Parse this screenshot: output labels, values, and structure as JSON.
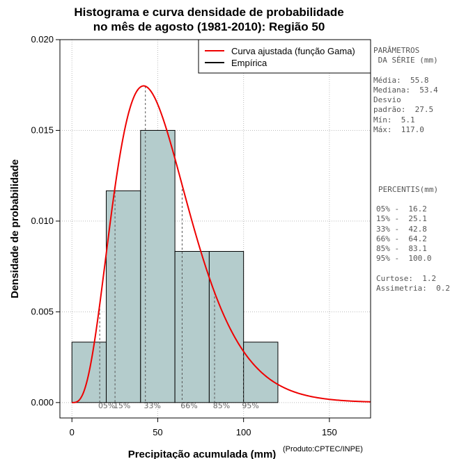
{
  "chart_data": {
    "type": "histogram",
    "title_line1": "Histograma e curva densidade de probabilidade",
    "title_line2": "no mês de agosto (1981-2010): Região 50",
    "xlabel": "Precipitação acumulada (mm)",
    "ylabel": "Densidade de probabilidade",
    "credit": "(Produto:CPTEC/INPE)",
    "xlim": [
      -7,
      174
    ],
    "ylim": [
      -0.00085,
      0.02
    ],
    "x_ticks": [
      0,
      50,
      100,
      150
    ],
    "x_tick_labels": [
      "0",
      "50",
      "100",
      "150"
    ],
    "y_ticks": [
      0,
      0.005,
      0.01,
      0.015,
      0.02
    ],
    "y_tick_labels": [
      "0.000",
      "0.005",
      "0.010",
      "0.015",
      "0.020"
    ],
    "bins": [
      {
        "start": 0,
        "end": 20,
        "density": 0.00333
      },
      {
        "start": 20,
        "end": 40,
        "density": 0.01167
      },
      {
        "start": 40,
        "end": 60,
        "density": 0.015
      },
      {
        "start": 60,
        "end": 80,
        "density": 0.00833
      },
      {
        "start": 80,
        "end": 100,
        "density": 0.00833
      },
      {
        "start": 100,
        "end": 120,
        "density": 0.00333
      }
    ],
    "gamma_fit": {
      "shape": 4.5,
      "rate": 0.0838
    },
    "percentile_lines": [
      {
        "value": 16.2,
        "label": "05%"
      },
      {
        "value": 25.1,
        "label": "15%"
      },
      {
        "value": 42.8,
        "label": "33%"
      },
      {
        "value": 64.2,
        "label": "66%"
      },
      {
        "value": 83.1,
        "label": "85%"
      },
      {
        "value": 100.0,
        "label": "95%"
      }
    ],
    "legend": [
      {
        "label": "Curva ajustada (função Gama)",
        "color": "#ee0000"
      },
      {
        "label": "Empírica",
        "color": "#000000"
      }
    ],
    "colors": {
      "bar": "#b4cccc",
      "curve": "#ee0000",
      "grid": "#bbbbbb"
    }
  },
  "stats_panel": {
    "header1": "PARÂMETROS",
    "header2": " DA SÉRIE (mm)",
    "media": "Média:  55.8",
    "mediana": "Mediana:  53.4",
    "desvio1": "Desvio",
    "desvio2": "padrão:  27.5",
    "min": "Mín:  5.1",
    "max": "Máx:  117.0"
  },
  "percentis_panel": {
    "header": "PERCENTIS(mm)",
    "p05": "05% -  16.2",
    "p15": "15% -  25.1",
    "p33": "33% -  42.8",
    "p66": "66% -  64.2",
    "p85": "85% -  83.1",
    "p95": "95% -  100.0",
    "curtose": "Curtose:  1.2",
    "assimetria": "Assimetria:  0.2"
  }
}
